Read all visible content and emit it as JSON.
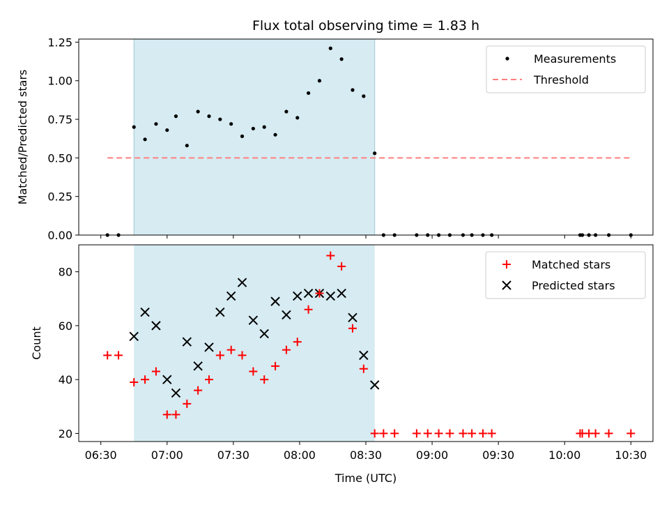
{
  "title": "Flux total observing time = 1.83 h",
  "colors": {
    "shade": "#add8e6",
    "threshold": "#ff7f7f",
    "matched": "#ff0000",
    "predicted": "#000000",
    "measure": "#000000"
  },
  "chart_data": [
    {
      "type": "scatter",
      "panel": "top",
      "ylabel": "Matched/Predicted stars",
      "xlim": [
        "06:20",
        "10:40"
      ],
      "ylim": [
        0,
        1.27
      ],
      "yticks": [
        "0.00",
        "0.25",
        "0.50",
        "0.75",
        "1.00",
        "1.25"
      ],
      "shaded_x": [
        "06:45",
        "08:34"
      ],
      "legend": {
        "position": "top-right",
        "entries": [
          "Measurements",
          "Threshold"
        ]
      },
      "threshold": {
        "name": "Threshold",
        "x": [
          "06:33",
          "10:30"
        ],
        "y": 0.5
      },
      "series": [
        {
          "name": "Measurements",
          "x": [
            "06:33",
            "06:38",
            "06:45",
            "06:50",
            "06:55",
            "07:00",
            "07:04",
            "07:09",
            "07:14",
            "07:19",
            "07:24",
            "07:29",
            "07:34",
            "07:39",
            "07:44",
            "07:49",
            "07:54",
            "07:59",
            "08:04",
            "08:09",
            "08:14",
            "08:19",
            "08:24",
            "08:29",
            "08:34",
            "08:38",
            "08:43",
            "08:53",
            "08:58",
            "09:03",
            "09:08",
            "09:14",
            "09:18",
            "09:23",
            "09:27",
            "10:07",
            "10:08",
            "10:11",
            "10:14",
            "10:20",
            "10:30"
          ],
          "y": [
            0,
            0,
            0.7,
            0.62,
            0.72,
            0.68,
            0.77,
            0.58,
            0.8,
            0.77,
            0.75,
            0.72,
            0.64,
            0.69,
            0.7,
            0.65,
            0.8,
            0.76,
            0.92,
            1.0,
            1.21,
            1.14,
            0.94,
            0.9,
            0.53,
            0,
            0,
            0,
            0,
            0,
            0,
            0,
            0,
            0,
            0,
            0,
            0,
            0,
            0,
            0,
            0
          ]
        }
      ]
    },
    {
      "type": "scatter",
      "panel": "bottom",
      "xlabel": "Time (UTC)",
      "ylabel": "Count",
      "xlim": [
        "06:20",
        "10:40"
      ],
      "ylim": [
        17,
        90
      ],
      "yticks": [
        "20",
        "40",
        "60",
        "80"
      ],
      "xticks": [
        "06:30",
        "07:00",
        "07:30",
        "08:00",
        "08:30",
        "09:00",
        "09:30",
        "10:00",
        "10:30"
      ],
      "shaded_x": [
        "06:45",
        "08:34"
      ],
      "legend": {
        "position": "top-right",
        "entries": [
          "Matched stars",
          "Predicted stars"
        ]
      },
      "series": [
        {
          "name": "Matched stars",
          "x": [
            "06:33",
            "06:38",
            "06:45",
            "06:50",
            "06:55",
            "07:00",
            "07:04",
            "07:09",
            "07:14",
            "07:19",
            "07:24",
            "07:29",
            "07:34",
            "07:39",
            "07:44",
            "07:49",
            "07:54",
            "07:59",
            "08:04",
            "08:09",
            "08:14",
            "08:19",
            "08:24",
            "08:29",
            "08:34",
            "08:38",
            "08:43",
            "08:53",
            "08:58",
            "09:03",
            "09:08",
            "09:14",
            "09:18",
            "09:23",
            "09:27",
            "10:07",
            "10:08",
            "10:11",
            "10:14",
            "10:20",
            "10:30"
          ],
          "y": [
            49,
            49,
            39,
            40,
            43,
            27,
            27,
            31,
            36,
            40,
            49,
            51,
            49,
            43,
            40,
            45,
            51,
            54,
            66,
            72,
            86,
            82,
            59,
            44,
            20,
            20,
            20,
            20,
            20,
            20,
            20,
            20,
            20,
            20,
            20,
            20,
            20,
            20,
            20,
            20,
            20
          ]
        },
        {
          "name": "Predicted stars",
          "x": [
            "06:45",
            "06:50",
            "06:55",
            "07:00",
            "07:04",
            "07:09",
            "07:14",
            "07:19",
            "07:24",
            "07:29",
            "07:34",
            "07:39",
            "07:44",
            "07:49",
            "07:54",
            "07:59",
            "08:04",
            "08:09",
            "08:14",
            "08:19",
            "08:24",
            "08:29",
            "08:34"
          ],
          "y": [
            56,
            65,
            60,
            40,
            35,
            54,
            45,
            52,
            65,
            71,
            76,
            62,
            57,
            69,
            64,
            71,
            72,
            72,
            71,
            72,
            63,
            49,
            38
          ]
        }
      ]
    }
  ]
}
